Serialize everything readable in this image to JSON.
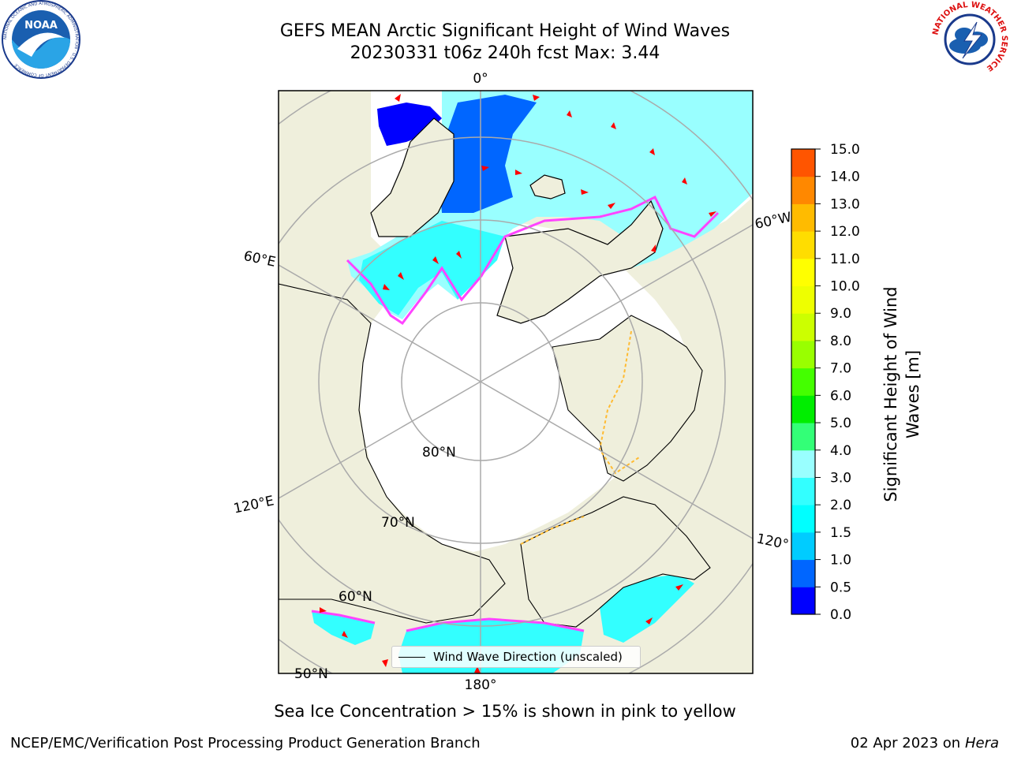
{
  "title_line1": "GEFS MEAN Arctic Significant Height of Wind Waves",
  "title_line2": "20230331 t06z 240h fcst   Max: 3.44",
  "logos": {
    "left_text": "NOAA",
    "left_ring": "NATIONAL OCEANIC AND ATMOSPHERIC ADMINISTRATION · U.S. DEPARTMENT OF COMMERCE",
    "right_ring": "NATIONAL WEATHER SERVICE"
  },
  "map": {
    "lon_labels": {
      "top": "0°",
      "right_top": "60°W",
      "right_bottom": "120°",
      "bottom": "180°",
      "left_top": "60°E",
      "left_bottom": "120°E"
    },
    "lat_labels": {
      "l80": "80°N",
      "l70": "70°N",
      "l60": "60°N",
      "l50": "50°N"
    },
    "legend_label": "Wind Wave Direction (unscaled)"
  },
  "colorbar": {
    "label": "Significant Height of Wind Waves [m]",
    "ticks": [
      "0.0",
      "0.5",
      "1.0",
      "1.5",
      "2.0",
      "3.0",
      "4.0",
      "5.0",
      "6.0",
      "7.0",
      "8.0",
      "9.0",
      "10.0",
      "11.0",
      "12.0",
      "13.0",
      "14.0",
      "15.0"
    ],
    "colors": [
      "#0000ff",
      "#0066ff",
      "#00ccff",
      "#00ffff",
      "#33ffff",
      "#99ffff",
      "#33ff77",
      "#00ee00",
      "#44ff00",
      "#99ff00",
      "#ccff00",
      "#eeff00",
      "#ffff00",
      "#ffdd00",
      "#ffbb00",
      "#ff8800",
      "#ff5500",
      "#ff2200",
      "#ff0000"
    ]
  },
  "colors": {
    "land": "#efefdc",
    "ocean": "#ffffff",
    "grid": "#aaaaaa",
    "ice_edge": "#ff44ff",
    "arrow": "#ff0000"
  },
  "ice_note": "Sea Ice Concentration > 15% is shown in pink to yellow",
  "footer": {
    "left": "NCEP/EMC/Verification Post Processing Product Generation Branch",
    "date": "02 Apr 2023 on",
    "host": "Hera"
  }
}
